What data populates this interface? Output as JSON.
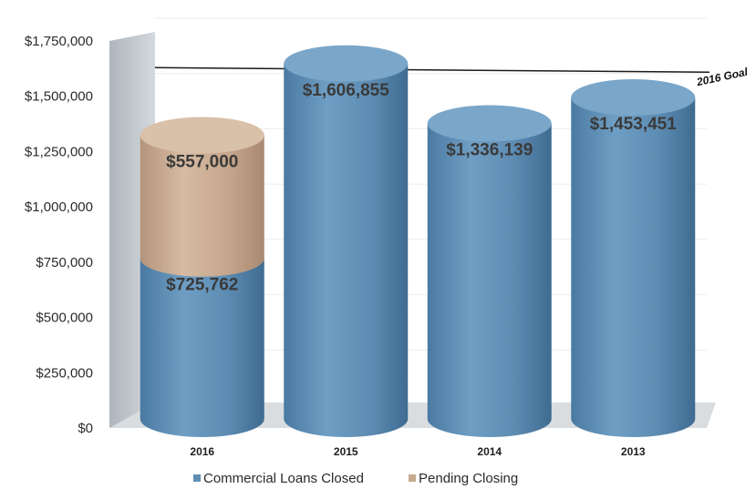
{
  "chart_data": {
    "type": "bar",
    "categories": [
      "2016",
      "2015",
      "2014",
      "2013"
    ],
    "series": [
      {
        "name": "Commercial Loans Closed",
        "color": "#5f8fb5",
        "values": [
          725762,
          1606855,
          1336139,
          1453451
        ]
      },
      {
        "name": "Pending Closing",
        "color": "#c7a98e",
        "values": [
          557000,
          0,
          0,
          0
        ]
      }
    ],
    "data_labels": [
      [
        "$725,762",
        "$1,606,855",
        "$1,336,139",
        "$1,453,451"
      ],
      [
        "$557,000",
        null,
        null,
        null
      ]
    ],
    "y_ticks": [
      "$0",
      "$250,000",
      "$500,000",
      "$750,000",
      "$1,000,000",
      "$1,250,000",
      "$1,500,000",
      "$1,750,000"
    ],
    "ylim": [
      0,
      1750000
    ],
    "goal": {
      "label": "2016 Goal",
      "value": 1650000
    },
    "stacked": true,
    "legend_position": "bottom"
  }
}
